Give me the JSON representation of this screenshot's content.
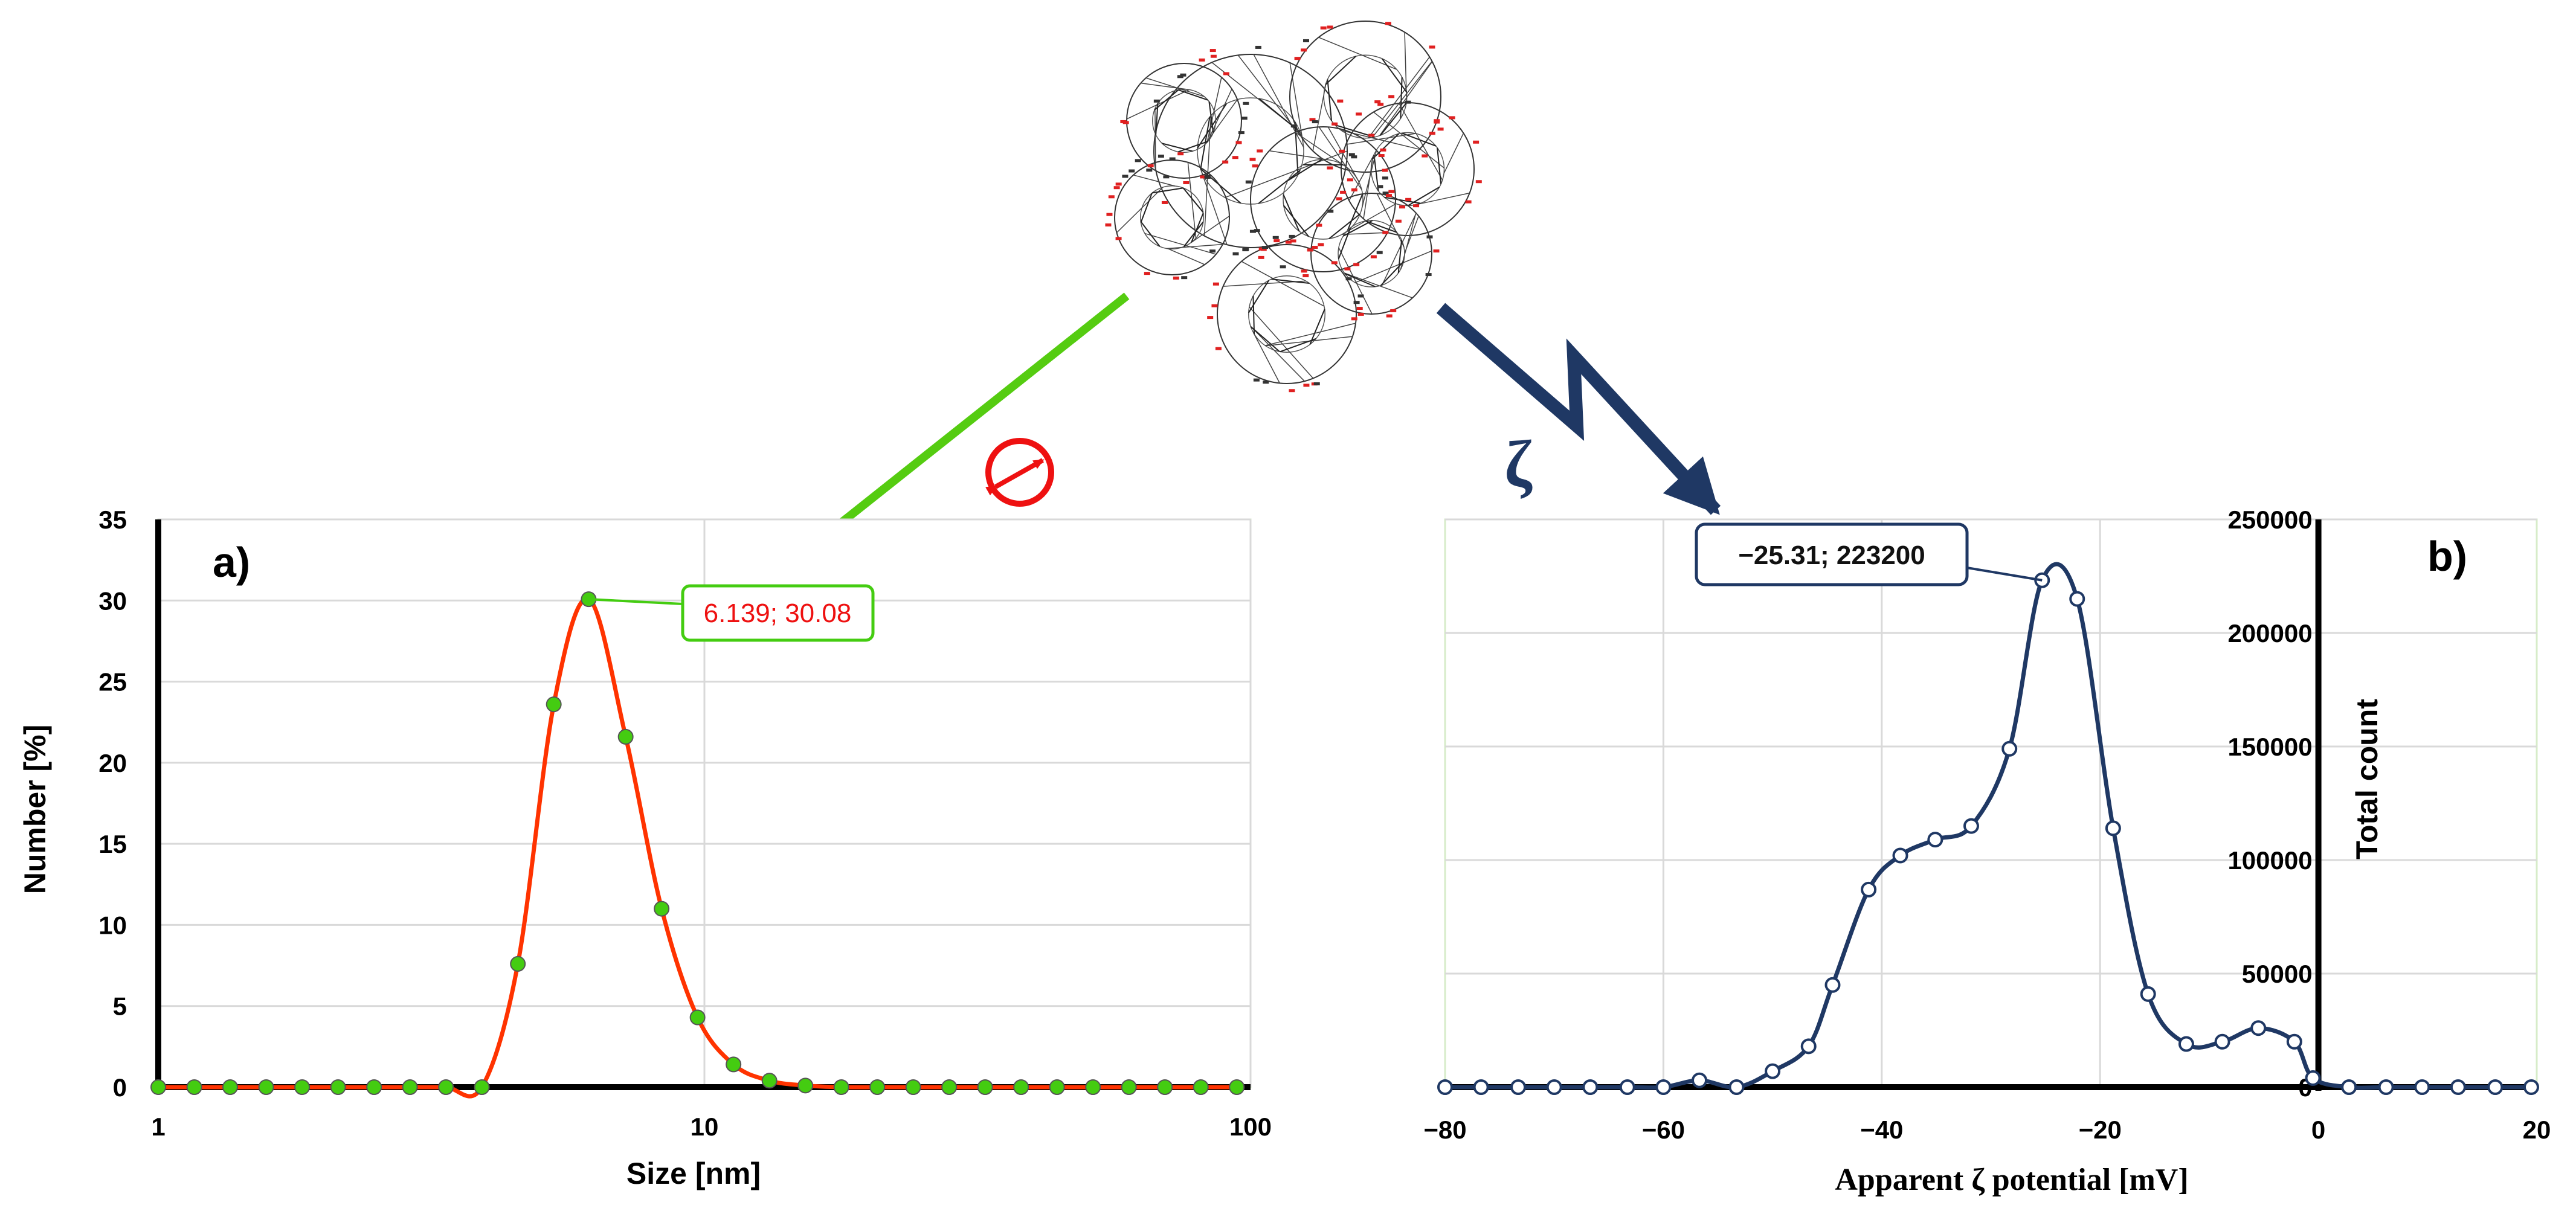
{
  "chart_data": [
    {
      "type": "line",
      "panel_label": "a)",
      "title": "",
      "xlabel": "Size [nm]",
      "ylabel": "Number [%]",
      "x_scale": "log",
      "xlim": [
        1,
        100
      ],
      "ylim": [
        0,
        35
      ],
      "x_ticks": [
        1,
        10,
        100
      ],
      "y_ticks": [
        0,
        5,
        10,
        15,
        20,
        25,
        30,
        35
      ],
      "grid": true,
      "line_color": "#ff3300",
      "marker_color": "#44cc11",
      "series": [
        {
          "x": [
            1.0,
            1.164,
            1.354,
            1.576,
            1.834,
            2.134,
            2.484,
            2.89,
            3.363,
            3.913,
            4.554,
            5.299,
            6.139,
            7.175,
            8.349,
            9.715,
            11.305,
            13.155,
            15.308,
            17.813,
            20.728,
            24.121,
            28.068,
            32.661,
            38.006,
            44.226,
            51.464,
            59.886,
            69.686,
            81.09,
            94.36
          ],
          "y": [
            0,
            0,
            0,
            0,
            0,
            0,
            0,
            0,
            0,
            0,
            7.6,
            23.6,
            30.08,
            21.6,
            11.0,
            4.3,
            1.4,
            0.4,
            0.1,
            0,
            0,
            0,
            0,
            0,
            0,
            0,
            0,
            0,
            0,
            0,
            0
          ]
        }
      ],
      "annotations": [
        {
          "text": "6.139; 30.08",
          "x": 6.139,
          "y": 30.08
        }
      ]
    },
    {
      "type": "line",
      "panel_label": "b)",
      "title": "",
      "xlabel": "Apparent ζ potential [mV]",
      "ylabel": "Total count",
      "xlim": [
        -80,
        20
      ],
      "ylim": [
        0,
        250000
      ],
      "x_ticks": [
        -80,
        -60,
        -40,
        -20,
        0,
        20
      ],
      "y_ticks": [
        0,
        50000,
        100000,
        150000,
        200000,
        250000
      ],
      "x_tick_labels": [
        "−80",
        "−60",
        "−40",
        "−20",
        "0",
        "20"
      ],
      "y_axis_position": "x=0",
      "grid": true,
      "line_color": "#1f3864",
      "series": [
        {
          "x": [
            -80.0,
            -76.7,
            -73.3,
            -70.0,
            -66.7,
            -63.3,
            -60.0,
            -56.7,
            -53.3,
            -50.0,
            -46.7,
            -44.5,
            -41.2,
            -38.3,
            -35.1,
            -31.8,
            -28.3,
            -25.31,
            -22.1,
            -18.8,
            -15.6,
            -12.1,
            -8.8,
            -5.5,
            -2.2,
            -0.5,
            2.8,
            6.2,
            9.5,
            12.8,
            16.2,
            19.5
          ],
          "y": [
            0,
            0,
            0,
            0,
            0,
            0,
            0,
            3000,
            0,
            7000,
            18000,
            45000,
            87000,
            102000,
            109000,
            115000,
            149000,
            223200,
            215000,
            114000,
            41000,
            19000,
            20000,
            26000,
            20000,
            4000,
            0,
            0,
            0,
            0,
            0,
            0
          ]
        }
      ],
      "annotations": [
        {
          "text": "−25.31; 223200",
          "x": -25.31,
          "y": 223200
        }
      ]
    }
  ],
  "figure": {
    "zeta_symbol": "ζ",
    "molecule_icon": "polyhedral-molecular-structure-icon",
    "diameter_icon": "diameter-symbol-icon",
    "green_arrow_color": "#55cc11",
    "navy_arrow_color": "#1f3864",
    "diameter_icon_color": "#ee1111"
  }
}
